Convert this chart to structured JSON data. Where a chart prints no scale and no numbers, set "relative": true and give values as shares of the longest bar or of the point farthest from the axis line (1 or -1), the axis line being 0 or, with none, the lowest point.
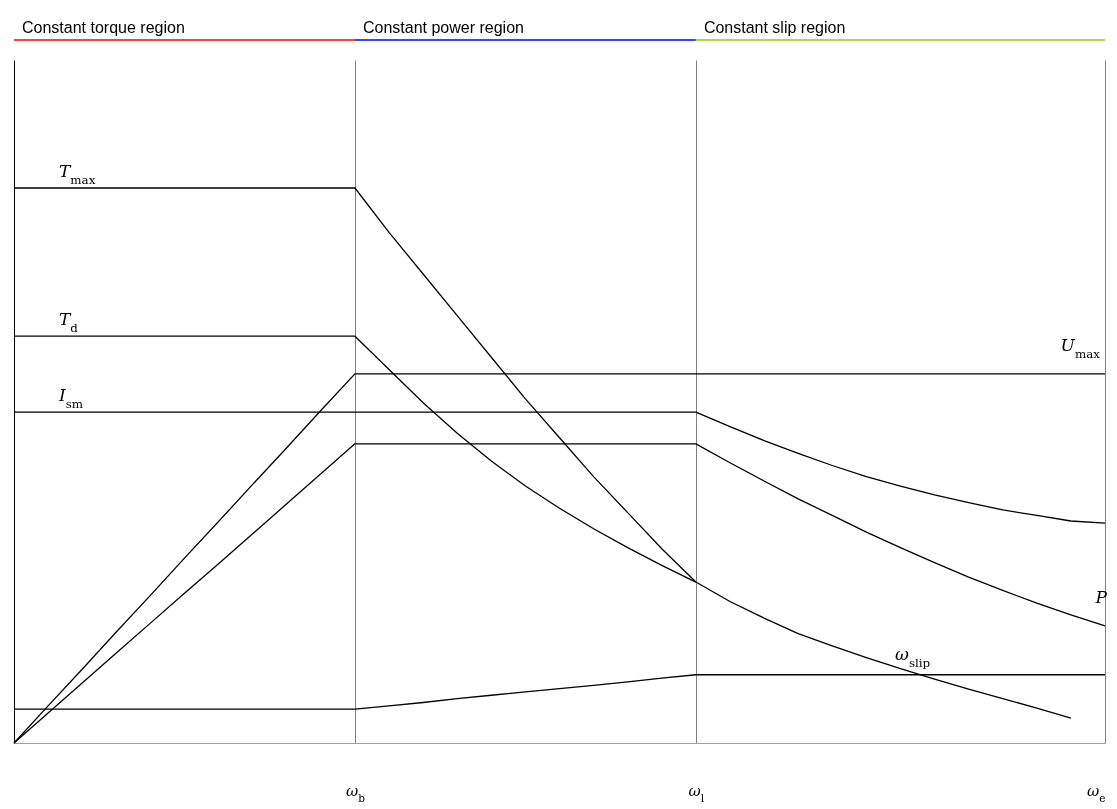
{
  "chart_data": {
    "type": "line",
    "relative": true,
    "tick_labels": "x",
    "line_style": "solid",
    "categories": [
      null,
      null,
      null,
      null,
      null,
      null,
      null,
      null,
      null,
      null,
      "ω$_{b}$",
      null,
      null,
      null,
      null,
      null,
      null,
      null,
      null,
      null,
      "ω$_{l}$",
      null,
      null,
      null,
      null,
      null,
      null,
      null,
      null,
      null,
      null,
      null,
      "ω$_{e}$"
    ],
    "series": [
      {
        "name": "T$_{max}$",
        "color": "#000000",
        "values": [
          1,
          1,
          1,
          1,
          1,
          1,
          1,
          1,
          1,
          1,
          1,
          0.92,
          0.845,
          0.77,
          0.695,
          0.62,
          0.55,
          0.48,
          0.415,
          0.35,
          0.29,
          0.255,
          0.225,
          0.197,
          0.175,
          0.154,
          0.134,
          0.115,
          0.097,
          0.08,
          0.063,
          0.045,
          null
        ]
      },
      {
        "name": "T$_{d}$",
        "color": "#000000",
        "values": [
          0.733,
          0.733,
          0.733,
          0.733,
          0.733,
          0.733,
          0.733,
          0.733,
          0.733,
          0.733,
          0.733,
          0.673,
          0.613,
          0.558,
          0.508,
          0.463,
          0.423,
          0.386,
          0.352,
          0.32,
          0.29,
          null,
          null,
          null,
          null,
          null,
          null,
          null,
          null,
          null,
          null,
          null,
          null
        ]
      },
      {
        "name": "U$_{max}$",
        "color": "#000000",
        "values": [
          0,
          0.067,
          0.133,
          0.2,
          0.266,
          0.333,
          0.399,
          0.466,
          0.532,
          0.599,
          0.665,
          0.665,
          0.665,
          0.665,
          0.665,
          0.665,
          0.665,
          0.665,
          0.665,
          0.665,
          0.665,
          0.665,
          0.665,
          0.665,
          0.665,
          0.665,
          0.665,
          0.665,
          0.665,
          0.665,
          0.665,
          0.665,
          0.665
        ]
      },
      {
        "name": "I$_{sm}$",
        "color": "#000000",
        "values": [
          0.596,
          0.596,
          0.596,
          0.596,
          0.596,
          0.596,
          0.596,
          0.596,
          0.596,
          0.596,
          0.596,
          0.596,
          0.596,
          0.596,
          0.596,
          0.596,
          0.596,
          0.596,
          0.596,
          0.596,
          0.596,
          0.57,
          0.545,
          0.522,
          0.5,
          0.48,
          0.463,
          0.447,
          0.433,
          0.42,
          0.41,
          0.4,
          0.396
        ]
      },
      {
        "name": "P",
        "color": "#000000",
        "values": [
          0,
          0.054,
          0.108,
          0.162,
          0.216,
          0.27,
          0.323,
          0.377,
          0.431,
          0.485,
          0.539,
          0.539,
          0.539,
          0.539,
          0.539,
          0.539,
          0.539,
          0.539,
          0.539,
          0.539,
          0.539,
          0.505,
          0.472,
          0.44,
          0.41,
          0.38,
          0.352,
          0.325,
          0.299,
          0.275,
          0.252,
          0.231,
          0.211
        ]
      },
      {
        "name": "ω$_{slip}$",
        "color": "#000000",
        "values": [
          0.061,
          0.061,
          0.061,
          0.061,
          0.061,
          0.061,
          0.061,
          0.061,
          0.061,
          0.061,
          0.061,
          0.067,
          0.073,
          0.08,
          0.086,
          0.092,
          0.098,
          0.104,
          0.11,
          0.117,
          0.123,
          0.123,
          0.123,
          0.123,
          0.123,
          0.123,
          0.123,
          0.123,
          0.123,
          0.123,
          0.123,
          0.123,
          0.123
        ]
      }
    ],
    "grid": "x",
    "annotations": [
      "Constant torque region",
      "Constant power region",
      "Constant slip region"
    ]
  }
}
